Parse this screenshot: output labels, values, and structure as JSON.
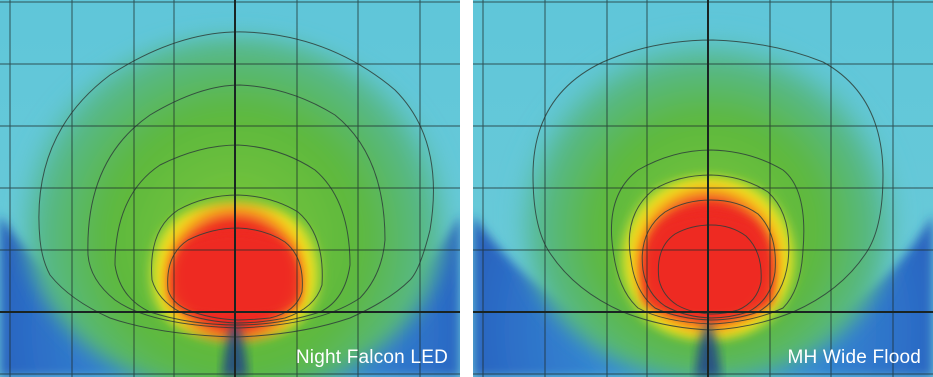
{
  "panels": [
    {
      "label": "Night Falcon LED",
      "colors": {
        "far": "#1d3f9a",
        "mid": "#4ec3dd",
        "green": "#58b73a",
        "yellow": "#f5eb1c",
        "hot": "#ee2a24"
      }
    },
    {
      "label": "MH Wide Flood",
      "colors": {
        "far": "#1d3f9a",
        "mid": "#4ec3dd",
        "green": "#58b73a",
        "yellow": "#f5eb1c",
        "hot": "#ee2a24"
      }
    }
  ]
}
